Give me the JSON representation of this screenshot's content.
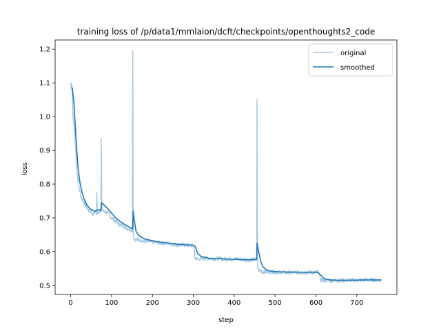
{
  "chart_data": {
    "type": "line",
    "title": "training loss of /p/data1/mmlaion/dcft/checkpoints/openthoughts2_code",
    "xlabel": "step",
    "ylabel": "loss",
    "xlim": [
      -38,
      798
    ],
    "ylim": [
      0.473,
      1.227
    ],
    "xticks": [
      0,
      100,
      200,
      300,
      400,
      500,
      600,
      700
    ],
    "yticks": [
      0.5,
      0.6,
      0.7,
      0.8,
      0.9,
      1.0,
      1.1,
      1.2
    ],
    "legend_position": "upper right",
    "grid": false,
    "series": [
      {
        "name": "original",
        "color": "#a6c8e0",
        "noise": 0.006,
        "points": [
          [
            0,
            1.09
          ],
          [
            2,
            1.1
          ],
          [
            4,
            1.07
          ],
          [
            6,
            0.99
          ],
          [
            8,
            0.98
          ],
          [
            10,
            0.95
          ],
          [
            12,
            0.91
          ],
          [
            15,
            0.85
          ],
          [
            18,
            0.81
          ],
          [
            22,
            0.78
          ],
          [
            26,
            0.76
          ],
          [
            30,
            0.75
          ],
          [
            35,
            0.74
          ],
          [
            40,
            0.73
          ],
          [
            45,
            0.72
          ],
          [
            50,
            0.72
          ],
          [
            55,
            0.71
          ],
          [
            60,
            0.72
          ],
          [
            63,
            0.71
          ],
          [
            64,
            0.775
          ],
          [
            65,
            0.715
          ],
          [
            70,
            0.72
          ],
          [
            74,
            0.725
          ],
          [
            75,
            0.935
          ],
          [
            76,
            0.73
          ],
          [
            80,
            0.72
          ],
          [
            90,
            0.715
          ],
          [
            100,
            0.7
          ],
          [
            110,
            0.69
          ],
          [
            120,
            0.68
          ],
          [
            130,
            0.675
          ],
          [
            140,
            0.668
          ],
          [
            150,
            0.663
          ],
          [
            151,
            0.66
          ],
          [
            152,
            1.195
          ],
          [
            153,
            0.66
          ],
          [
            155,
            0.64
          ],
          [
            160,
            0.635
          ],
          [
            170,
            0.635
          ],
          [
            180,
            0.63
          ],
          [
            200,
            0.628
          ],
          [
            220,
            0.626
          ],
          [
            240,
            0.624
          ],
          [
            260,
            0.62
          ],
          [
            280,
            0.62
          ],
          [
            300,
            0.618
          ],
          [
            302,
            0.61
          ],
          [
            304,
            0.58
          ],
          [
            310,
            0.578
          ],
          [
            330,
            0.58
          ],
          [
            350,
            0.58
          ],
          [
            370,
            0.578
          ],
          [
            390,
            0.578
          ],
          [
            410,
            0.578
          ],
          [
            430,
            0.576
          ],
          [
            450,
            0.576
          ],
          [
            455,
            0.576
          ],
          [
            456,
            1.05
          ],
          [
            457,
            0.58
          ],
          [
            458,
            0.55
          ],
          [
            460,
            0.545
          ],
          [
            470,
            0.54
          ],
          [
            490,
            0.54
          ],
          [
            510,
            0.538
          ],
          [
            540,
            0.538
          ],
          [
            570,
            0.538
          ],
          [
            600,
            0.538
          ],
          [
            605,
            0.54
          ],
          [
            608,
            0.53
          ],
          [
            612,
            0.515
          ],
          [
            620,
            0.515
          ],
          [
            650,
            0.514
          ],
          [
            680,
            0.515
          ],
          [
            700,
            0.515
          ],
          [
            730,
            0.516
          ],
          [
            760,
            0.516
          ]
        ]
      },
      {
        "name": "smoothed",
        "color": "#1f77b4",
        "noise": 0,
        "points": [
          [
            0,
            1.085
          ],
          [
            4,
            1.085
          ],
          [
            8,
            1.04
          ],
          [
            12,
            0.96
          ],
          [
            15,
            0.9
          ],
          [
            18,
            0.85
          ],
          [
            22,
            0.81
          ],
          [
            26,
            0.785
          ],
          [
            30,
            0.765
          ],
          [
            35,
            0.75
          ],
          [
            40,
            0.738
          ],
          [
            45,
            0.73
          ],
          [
            50,
            0.725
          ],
          [
            55,
            0.722
          ],
          [
            60,
            0.72
          ],
          [
            65,
            0.722
          ],
          [
            70,
            0.725
          ],
          [
            74,
            0.72
          ],
          [
            76,
            0.745
          ],
          [
            80,
            0.74
          ],
          [
            90,
            0.728
          ],
          [
            100,
            0.714
          ],
          [
            110,
            0.7
          ],
          [
            120,
            0.69
          ],
          [
            130,
            0.682
          ],
          [
            140,
            0.675
          ],
          [
            150,
            0.668
          ],
          [
            152,
            0.668
          ],
          [
            153,
            0.72
          ],
          [
            156,
            0.69
          ],
          [
            160,
            0.66
          ],
          [
            165,
            0.65
          ],
          [
            170,
            0.645
          ],
          [
            180,
            0.638
          ],
          [
            200,
            0.632
          ],
          [
            220,
            0.628
          ],
          [
            240,
            0.625
          ],
          [
            260,
            0.622
          ],
          [
            280,
            0.62
          ],
          [
            300,
            0.619
          ],
          [
            305,
            0.615
          ],
          [
            310,
            0.595
          ],
          [
            320,
            0.585
          ],
          [
            340,
            0.58
          ],
          [
            360,
            0.579
          ],
          [
            380,
            0.578
          ],
          [
            400,
            0.577
          ],
          [
            420,
            0.576
          ],
          [
            440,
            0.576
          ],
          [
            455,
            0.576
          ],
          [
            456,
            0.625
          ],
          [
            460,
            0.6
          ],
          [
            465,
            0.57
          ],
          [
            470,
            0.555
          ],
          [
            480,
            0.545
          ],
          [
            490,
            0.542
          ],
          [
            510,
            0.54
          ],
          [
            540,
            0.539
          ],
          [
            570,
            0.539
          ],
          [
            600,
            0.539
          ],
          [
            605,
            0.538
          ],
          [
            612,
            0.53
          ],
          [
            620,
            0.52
          ],
          [
            635,
            0.516
          ],
          [
            660,
            0.515
          ],
          [
            690,
            0.515
          ],
          [
            720,
            0.516
          ],
          [
            760,
            0.516
          ]
        ]
      }
    ]
  }
}
